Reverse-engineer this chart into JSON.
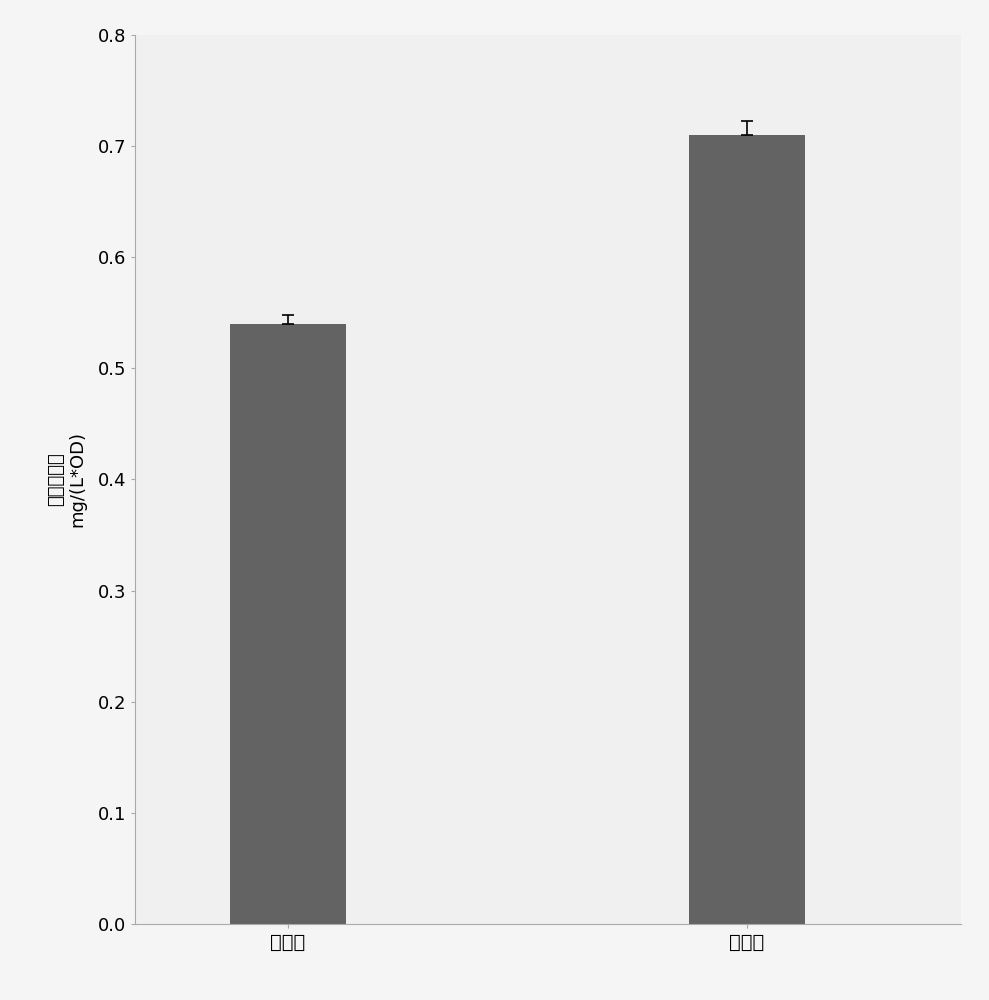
{
  "categories": [
    "野生型",
    "实验组"
  ],
  "values": [
    0.54,
    0.71
  ],
  "errors": [
    0.008,
    0.012
  ],
  "bar_color": "#636363",
  "bar_width": 0.38,
  "bar_positions": [
    1.0,
    2.5
  ],
  "ylabel_line1": "脂肪酸含量",
  "ylabel_line2": "mg/(L*OD)",
  "ylim": [
    0,
    0.8
  ],
  "yticks": [
    0,
    0.1,
    0.2,
    0.3,
    0.4,
    0.5,
    0.6,
    0.7,
    0.8
  ],
  "background_color": "#f5f5f5",
  "plot_bg_color": "#f0f0f0",
  "axis_color": "#aaaaaa",
  "error_cap_size": 4,
  "tick_fontsize": 13,
  "label_fontsize": 13,
  "xlabel_fontsize": 14,
  "xlim": [
    0.5,
    3.2
  ]
}
